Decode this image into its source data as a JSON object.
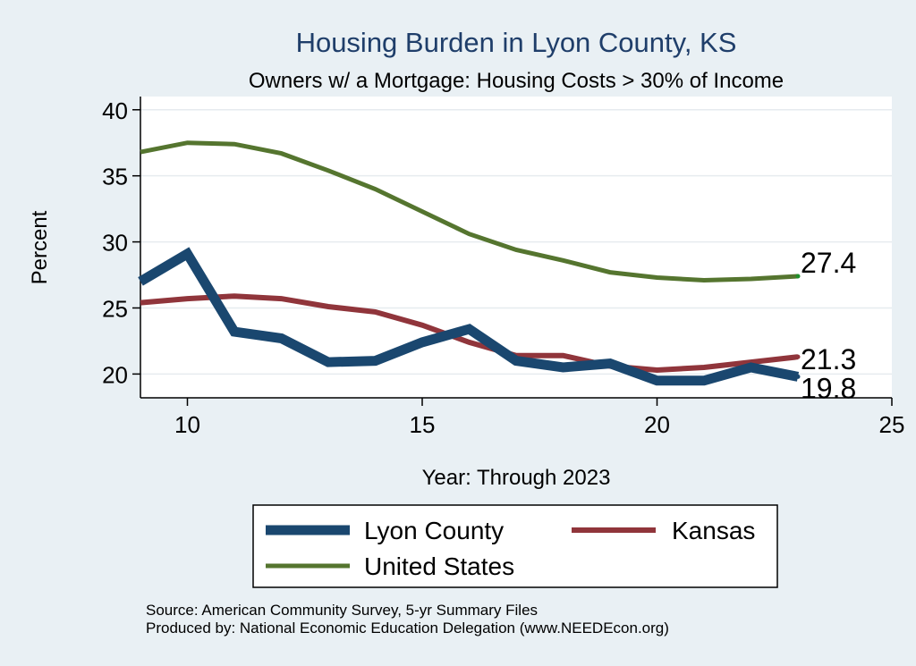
{
  "chart_data": {
    "type": "line",
    "title": "Housing Burden in Lyon County, KS",
    "subtitle": "Owners w/ a Mortgage: Housing Costs > 30% of Income",
    "xlabel": "Year: Through 2023",
    "ylabel": "Percent",
    "xlim": [
      9,
      25
    ],
    "ylim": [
      18.2,
      41
    ],
    "xticks": [
      10,
      15,
      20,
      25
    ],
    "yticks": [
      20,
      25,
      30,
      35,
      40
    ],
    "series": [
      {
        "name": "Lyon County",
        "color": "#1a476f",
        "width": 11,
        "x": [
          9,
          10,
          11,
          12,
          13,
          14,
          15,
          16,
          17,
          18,
          19,
          20,
          21,
          22,
          23
        ],
        "values": [
          27.0,
          29.1,
          23.2,
          22.7,
          20.9,
          21.0,
          22.4,
          23.4,
          21.0,
          20.5,
          20.8,
          19.5,
          19.5,
          20.5,
          19.8
        ],
        "end_label": "19.8"
      },
      {
        "name": "Kansas",
        "color": "#90353b",
        "width": 6,
        "x": [
          9,
          10,
          11,
          12,
          13,
          14,
          15,
          16,
          17,
          18,
          19,
          20,
          21,
          22,
          23
        ],
        "values": [
          25.4,
          25.7,
          25.9,
          25.7,
          25.1,
          24.7,
          23.7,
          22.4,
          21.4,
          21.4,
          20.6,
          20.3,
          20.5,
          20.9,
          21.3
        ],
        "end_label": "21.3"
      },
      {
        "name": "United States",
        "color": "#55752f",
        "width": 5,
        "x": [
          9,
          10,
          11,
          12,
          13,
          14,
          15,
          16,
          17,
          18,
          19,
          20,
          21,
          22,
          23
        ],
        "values": [
          36.8,
          37.5,
          37.4,
          36.7,
          35.4,
          34.0,
          32.3,
          30.6,
          29.4,
          28.6,
          27.7,
          27.3,
          27.1,
          27.2,
          27.4
        ],
        "end_label": "27.4"
      }
    ],
    "legend": {
      "placement": "bottom",
      "entries": [
        "Lyon County",
        "Kansas",
        "United States"
      ]
    }
  },
  "notes": {
    "source": "Source: American Community Survey, 5-yr Summary Files",
    "produced_by": "Produced by: National Economic Education Delegation (www.NEEDEcon.org)"
  },
  "colors": {
    "background": "#e9f0f4",
    "plot_bg": "#ffffff",
    "grid": "#e6ebef",
    "title": "#1f3e6a"
  }
}
